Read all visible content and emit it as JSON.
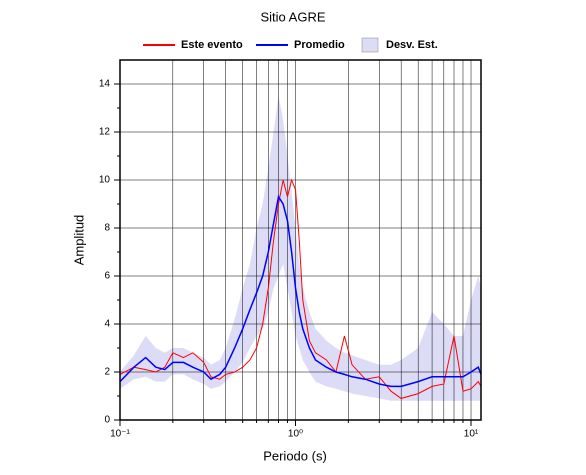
{
  "chart_data": {
    "type": "line",
    "title": "Sitio AGRE",
    "xlabel": "Periodo (s)",
    "ylabel": "Amplitud",
    "xscale": "log",
    "grid": true,
    "xlim": [
      0.1,
      11.4
    ],
    "ylim": [
      0,
      15
    ],
    "xticks": [
      {
        "value": 0.1,
        "label": "10⁻¹"
      },
      {
        "value": 1,
        "label": "10⁰"
      },
      {
        "value": 10,
        "label": "10¹"
      }
    ],
    "yticks": [
      0,
      2,
      4,
      6,
      8,
      10,
      12,
      14
    ],
    "x": [
      0.1,
      0.12,
      0.14,
      0.16,
      0.18,
      0.2,
      0.23,
      0.26,
      0.3,
      0.33,
      0.37,
      0.4,
      0.45,
      0.5,
      0.55,
      0.6,
      0.65,
      0.7,
      0.75,
      0.8,
      0.85,
      0.9,
      0.95,
      1.0,
      1.05,
      1.1,
      1.2,
      1.3,
      1.5,
      1.7,
      1.9,
      2.1,
      2.5,
      3,
      3.5,
      4,
      5,
      6,
      7,
      8,
      9,
      10,
      11,
      11.4
    ],
    "band": {
      "name": "Desv. Est.",
      "color": "#dcdcf7",
      "upper": [
        2.0,
        2.7,
        3.5,
        3.0,
        2.8,
        3.0,
        3.0,
        2.8,
        2.6,
        2.3,
        2.5,
        3.0,
        4.2,
        5.5,
        6.5,
        8.0,
        9.0,
        10.5,
        12,
        13.5,
        12.5,
        11,
        9.5,
        8,
        6.5,
        5.5,
        4.5,
        3.8,
        3.3,
        3.0,
        2.8,
        2.7,
        2.5,
        2.3,
        2.3,
        2.5,
        3.0,
        4.5,
        4.0,
        3.5,
        3.5,
        5.0,
        6.0,
        5.5
      ],
      "lower": [
        1.3,
        1.7,
        1.8,
        1.6,
        1.6,
        1.9,
        1.9,
        1.7,
        1.5,
        1.3,
        1.4,
        1.6,
        2.0,
        2.4,
        3.0,
        3.5,
        3.8,
        4.5,
        5.5,
        6.0,
        6.5,
        5.5,
        4.5,
        3.5,
        3.0,
        2.5,
        2.0,
        1.6,
        1.4,
        1.3,
        1.2,
        1.1,
        1.0,
        0.9,
        0.8,
        0.8,
        0.8,
        0.8,
        0.8,
        0.8,
        0.8,
        0.8,
        0.8,
        0.8
      ]
    },
    "series": [
      {
        "name": "Este evento",
        "color": "#ff0000",
        "values": [
          1.9,
          2.2,
          2.1,
          2.0,
          2.2,
          2.8,
          2.6,
          2.8,
          2.4,
          1.8,
          1.7,
          1.9,
          2.0,
          2.2,
          2.5,
          3.0,
          4.0,
          5.5,
          7.5,
          9.0,
          10.0,
          9.3,
          10.0,
          9.6,
          7.5,
          5.0,
          3.3,
          2.8,
          2.5,
          2.0,
          3.5,
          2.3,
          1.7,
          1.8,
          1.2,
          0.9,
          1.1,
          1.4,
          1.5,
          3.5,
          1.2,
          1.3,
          1.6,
          1.4
        ]
      },
      {
        "name": "Promedio",
        "color": "#0000ff",
        "values": [
          1.6,
          2.2,
          2.6,
          2.2,
          2.1,
          2.4,
          2.4,
          2.2,
          2.0,
          1.7,
          1.9,
          2.2,
          3.0,
          3.8,
          4.6,
          5.3,
          6.0,
          7.0,
          8.2,
          9.3,
          9.0,
          8.3,
          7.0,
          5.5,
          4.5,
          3.8,
          3.0,
          2.5,
          2.2,
          2.0,
          1.9,
          1.8,
          1.7,
          1.5,
          1.4,
          1.4,
          1.6,
          1.8,
          1.8,
          1.8,
          1.8,
          2.0,
          2.2,
          1.9
        ]
      }
    ]
  }
}
